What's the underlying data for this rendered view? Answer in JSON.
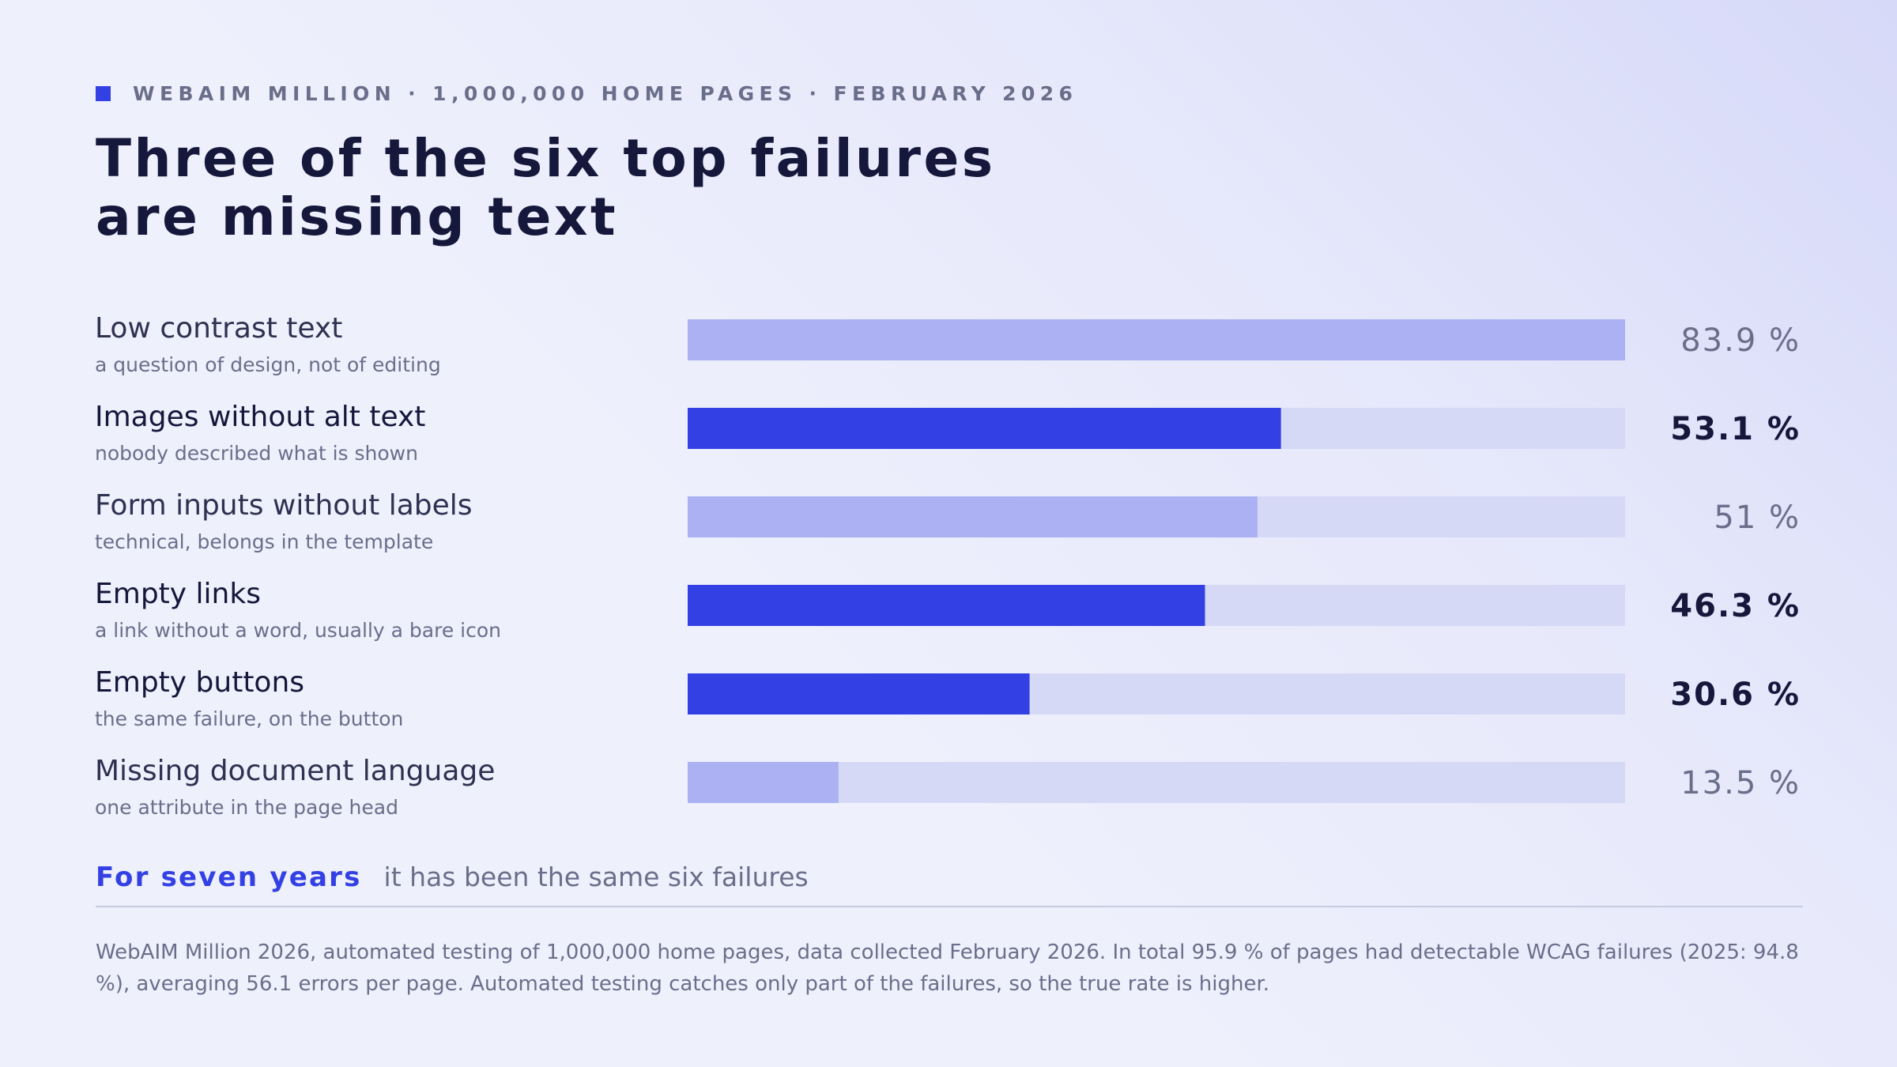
{
  "header": {
    "eyebrow": "WEBAIM MILLION · 1,000,000 HOME PAGES · FEBRUARY 2026",
    "title_line1": "Three of the six top failures",
    "title_line2": "are missing text"
  },
  "chart_data": {
    "type": "bar",
    "orientation": "horizontal",
    "unit": "%",
    "xlim": [
      0,
      83.9
    ],
    "grid": false,
    "categories": [
      "Low contrast text",
      "Images without alt text",
      "Form inputs without labels",
      "Empty links",
      "Empty buttons",
      "Missing document language"
    ],
    "subtitles": [
      "a question of design, not of editing",
      "nobody described what is shown",
      "technical, belongs in the template",
      "a link without a word, usually a bare icon",
      "the same failure, on the button",
      "one attribute in the page head"
    ],
    "values": [
      83.9,
      53.1,
      51,
      46.3,
      30.6,
      13.5
    ],
    "value_labels": [
      "83.9 %",
      "53.1 %",
      "51 %",
      "46.3 %",
      "30.6 %",
      "13.5 %"
    ],
    "highlighted": [
      false,
      true,
      false,
      true,
      true,
      false
    ]
  },
  "colors": {
    "highlight_bar": "#3340e4",
    "muted_bar": "#abb1f2",
    "track": "#d6d9f6",
    "label_text": "#2e3150",
    "sub_text": "#6b6e8a",
    "value_highlight": "#15173b",
    "value_muted": "#6b6e8a"
  },
  "footer": {
    "accent": "For seven years",
    "rest": "it has been the same six failures",
    "note": "WebAIM Million 2026, automated testing of 1,000,000 home pages, data collected February 2026. In total 95.9 % of pages had detectable WCAG failures (2025: 94.8 %), averaging 56.1 errors per page. Automated testing catches only part of the failures, so the true rate is higher."
  }
}
